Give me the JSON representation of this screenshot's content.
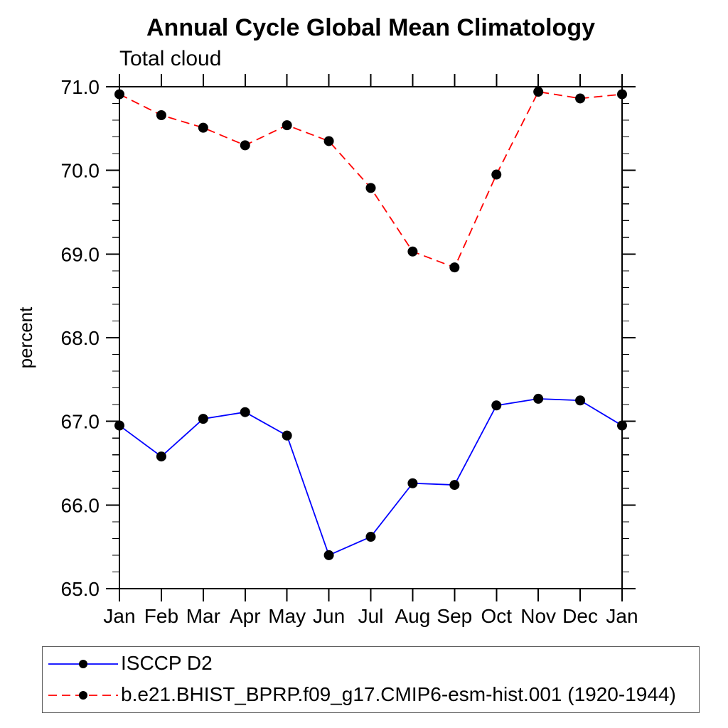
{
  "chart_data": {
    "type": "line",
    "title": "Annual Cycle Global Mean Climatology",
    "subtitle": "Total cloud",
    "xlabel": "",
    "ylabel": "percent",
    "categories": [
      "Jan",
      "Feb",
      "Mar",
      "Apr",
      "May",
      "Jun",
      "Jul",
      "Aug",
      "Sep",
      "Oct",
      "Nov",
      "Dec",
      "Jan"
    ],
    "ylim": [
      65.0,
      71.0
    ],
    "ytick_labels": [
      "65.0",
      "66.0",
      "67.0",
      "68.0",
      "69.0",
      "70.0",
      "71.0"
    ],
    "yminor_interval": 0.2,
    "grid": false,
    "legend_position": "bottom-left-box",
    "axis_color": "#000000",
    "marker_shape": "filled-circle",
    "series": [
      {
        "name": "ISCCP D2",
        "color": "#0000ff",
        "line_style": "solid",
        "marker_color": "#000000",
        "values": [
          66.95,
          66.58,
          67.03,
          67.11,
          66.83,
          65.4,
          65.62,
          66.26,
          66.24,
          67.19,
          67.27,
          67.25,
          66.95
        ]
      },
      {
        "name": "b.e21.BHIST_BPRP.f09_g17.CMIP6-esm-hist.001 (1920-1944)",
        "color": "#ff0000",
        "line_style": "dashed",
        "marker_color": "#000000",
        "values": [
          70.91,
          70.66,
          70.51,
          70.3,
          70.54,
          70.35,
          69.79,
          69.03,
          68.84,
          69.95,
          70.94,
          70.86,
          70.91
        ]
      }
    ]
  }
}
